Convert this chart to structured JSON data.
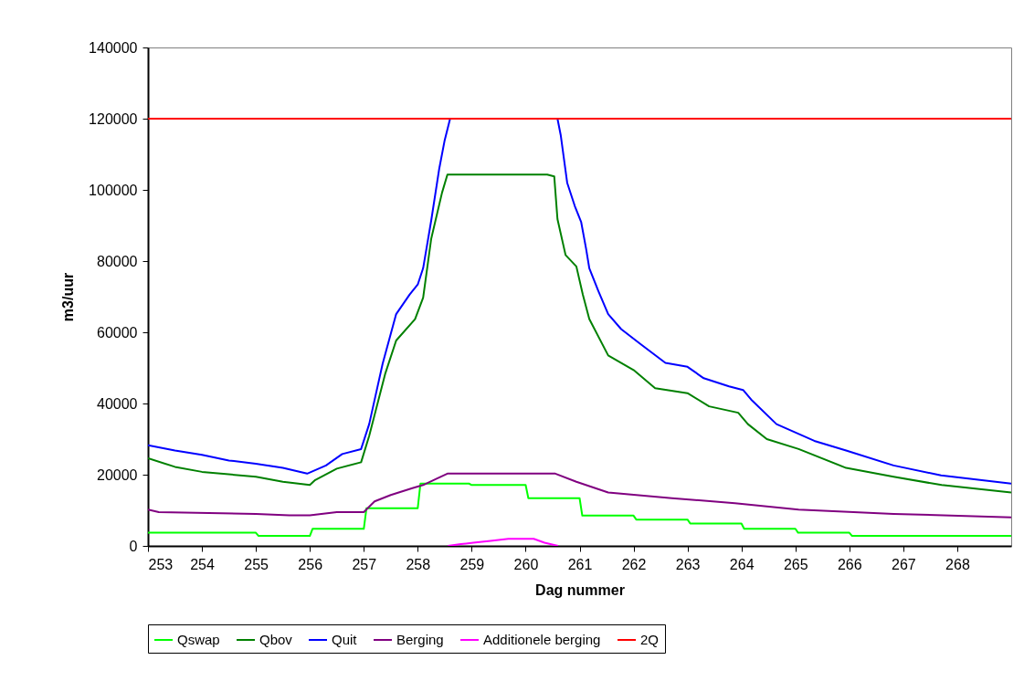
{
  "chart_data": {
    "type": "line",
    "xlabel": "Dag nummer",
    "ylabel": "m3/uur",
    "xlim": [
      253,
      269
    ],
    "ylim": [
      0,
      140000
    ],
    "xticks": [
      253,
      254,
      255,
      256,
      257,
      258,
      259,
      260,
      261,
      262,
      263,
      264,
      265,
      266,
      267,
      268
    ],
    "yticks": [
      0,
      20000,
      40000,
      60000,
      80000,
      100000,
      120000,
      140000
    ],
    "grid": false,
    "legend": "bottom",
    "line_style": "solid",
    "series": [
      {
        "name": "Qswap",
        "color": "#00ff00",
        "x": [
          253,
          255,
          255.05,
          256,
          256.05,
          257,
          257.05,
          258,
          258.05,
          258.95,
          259,
          260,
          260.05,
          261,
          261.05,
          262,
          262.05,
          263,
          263.05,
          264,
          264.05,
          265,
          265.05,
          266,
          266.05,
          269
        ],
        "values": [
          3700,
          3700,
          2800,
          2800,
          4800,
          4800,
          10600,
          10600,
          17500,
          17500,
          17100,
          17100,
          13400,
          13400,
          8500,
          8500,
          7400,
          7400,
          6300,
          6300,
          4800,
          4800,
          3700,
          3700,
          2800,
          2800
        ]
      },
      {
        "name": "Qbov",
        "color": "#008000",
        "x": [
          253,
          253.5,
          254,
          255,
          255.5,
          256,
          256.1,
          256.5,
          256.95,
          257.1,
          257.4,
          257.6,
          257.95,
          258.1,
          258.25,
          258.45,
          258.55,
          260.4,
          260.53,
          260.59,
          260.74,
          260.94,
          261.06,
          261.18,
          261.53,
          262,
          262.4,
          263,
          263.4,
          263.94,
          264.12,
          264.47,
          265.06,
          265.94,
          266.82,
          267.71,
          269
        ],
        "values": [
          24600,
          22200,
          20800,
          19400,
          18000,
          17100,
          18500,
          21700,
          23500,
          30900,
          48500,
          57700,
          63700,
          69700,
          86300,
          99200,
          104300,
          104300,
          103800,
          91800,
          81700,
          78500,
          70600,
          63700,
          53500,
          49400,
          44300,
          42900,
          39200,
          37400,
          34200,
          30000,
          27200,
          21900,
          19400,
          17100,
          15000
        ]
      },
      {
        "name": "Quit",
        "color": "#0000ff",
        "x": [
          253,
          253.5,
          254,
          254.5,
          255,
          255.5,
          255.95,
          256.3,
          256.6,
          256.95,
          257.1,
          257.35,
          257.6,
          257.85,
          258,
          258.1,
          258.25,
          258.4,
          258.5,
          258.6,
          260.59,
          260.65,
          260.77,
          260.91,
          261.03,
          261.12,
          261.18,
          261.35,
          261.53,
          261.77,
          262.12,
          262.59,
          263,
          263.3,
          263.77,
          264.03,
          264.18,
          264.65,
          265.35,
          265.94,
          266.82,
          267.7,
          269
        ],
        "values": [
          28300,
          26800,
          25600,
          24000,
          23100,
          21900,
          20300,
          22600,
          25800,
          27200,
          34200,
          51200,
          65100,
          70600,
          73400,
          78000,
          91400,
          106100,
          114000,
          120000,
          120000,
          115400,
          102000,
          95500,
          90900,
          83500,
          78000,
          71500,
          65100,
          60900,
          56800,
          51400,
          50300,
          47100,
          44800,
          43800,
          41100,
          34200,
          29500,
          26800,
          22600,
          19800,
          17500
        ]
      },
      {
        "name": "Berging",
        "color": "#800080",
        "x": [
          253,
          253.2,
          255,
          255.62,
          256,
          256.5,
          257,
          257.2,
          257.5,
          257.9,
          258.1,
          258.35,
          258.55,
          260.55,
          260.94,
          261.53,
          262.71,
          263.88,
          265.06,
          266.82,
          269
        ],
        "values": [
          10200,
          9500,
          9000,
          8600,
          8600,
          9500,
          9500,
          12500,
          14300,
          16200,
          17100,
          18900,
          20300,
          20300,
          18000,
          15000,
          13400,
          12000,
          10200,
          9000,
          8000
        ]
      },
      {
        "name": "Additionele berging",
        "color": "#ff00ff",
        "x": [
          258.56,
          258.8,
          259.03,
          259.35,
          259.68,
          260.15,
          260.35,
          260.6
        ],
        "values": [
          0,
          500,
          900,
          1400,
          2000,
          2000,
          900,
          0
        ]
      },
      {
        "name": "2Q",
        "color": "#ff0000",
        "x": [
          253,
          269
        ],
        "values": [
          120000,
          120000
        ]
      }
    ]
  }
}
